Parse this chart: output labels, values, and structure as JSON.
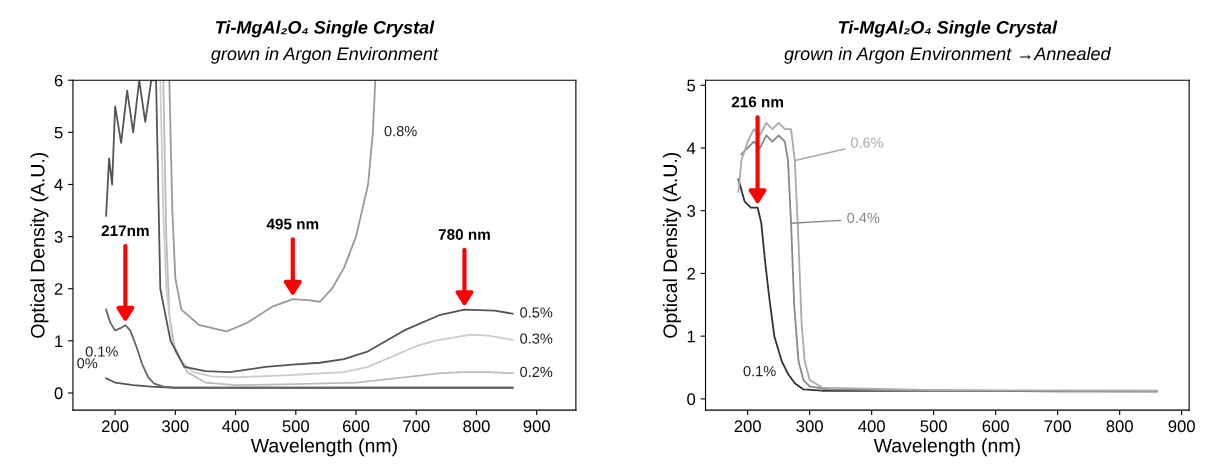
{
  "chart_data": [
    {
      "type": "line",
      "title": "Ti-MgAl₂O₄ Single Crystal",
      "subtitle": "grown in Argon Environment",
      "xlabel": "Wavelength (nm)",
      "ylabel": "Optical Density (A.U.)",
      "xlim": [
        130,
        965
      ],
      "ylim": [
        -0.33,
        6
      ],
      "xticks": [
        200,
        300,
        400,
        500,
        600,
        700,
        800,
        900
      ],
      "yticks": [
        0,
        1,
        2,
        3,
        4,
        5,
        6
      ],
      "series": [
        {
          "name": "0%",
          "color": "#555555",
          "x": [
            185,
            200,
            230,
            260,
            300,
            400,
            500,
            600,
            700,
            800,
            860
          ],
          "values": [
            0.28,
            0.2,
            0.15,
            0.12,
            0.1,
            0.1,
            0.1,
            0.1,
            0.1,
            0.1,
            0.1
          ]
        },
        {
          "name": "0.1%",
          "color": "#666666",
          "x": [
            185,
            192,
            200,
            210,
            217,
            225,
            235,
            245,
            255,
            265,
            280,
            300,
            400,
            600,
            860
          ],
          "values": [
            1.6,
            1.35,
            1.2,
            1.25,
            1.3,
            1.2,
            0.9,
            0.55,
            0.3,
            0.18,
            0.12,
            0.1,
            0.1,
            0.1,
            0.1
          ]
        },
        {
          "name": "0.2%",
          "color": "#bbbbbb",
          "x": [
            280,
            285,
            290,
            300,
            320,
            350,
            400,
            500,
            600,
            680,
            740,
            780,
            820,
            860
          ],
          "values": [
            6,
            3,
            1.5,
            0.8,
            0.4,
            0.2,
            0.15,
            0.17,
            0.2,
            0.3,
            0.38,
            0.4,
            0.4,
            0.38
          ]
        },
        {
          "name": "0.3%",
          "color": "#cccccc",
          "x": [
            275,
            280,
            285,
            295,
            310,
            330,
            360,
            400,
            500,
            580,
            620,
            660,
            700,
            730,
            790,
            820,
            860
          ],
          "values": [
            6,
            3.5,
            2,
            1,
            0.6,
            0.4,
            0.32,
            0.3,
            0.35,
            0.4,
            0.5,
            0.7,
            0.9,
            1.0,
            1.12,
            1.1,
            1.02
          ]
        },
        {
          "name": "0.5%",
          "color": "#555555",
          "x": [
            185,
            190,
            195,
            200,
            210,
            220,
            230,
            240,
            250,
            260,
            268,
            275,
            292,
            315,
            350,
            390,
            450,
            500,
            540,
            580,
            620,
            680,
            740,
            780,
            830,
            860
          ],
          "values": [
            3.4,
            4.5,
            4.0,
            5.5,
            4.8,
            5.8,
            5.0,
            6,
            5.2,
            6,
            6,
            2,
            1,
            0.5,
            0.42,
            0.4,
            0.5,
            0.55,
            0.58,
            0.65,
            0.8,
            1.2,
            1.5,
            1.6,
            1.58,
            1.52
          ]
        },
        {
          "name": "0.8%",
          "color": "#999999",
          "x": [
            290,
            295,
            300,
            310,
            340,
            385,
            420,
            460,
            495,
            520,
            540,
            560,
            580,
            600,
            620,
            628,
            632
          ],
          "values": [
            6,
            3.5,
            2.2,
            1.6,
            1.3,
            1.18,
            1.35,
            1.65,
            1.8,
            1.78,
            1.75,
            2,
            2.4,
            3,
            4,
            5,
            6
          ]
        }
      ],
      "annotations": [
        {
          "text": "217nm",
          "x": 217,
          "y": 1.3
        },
        {
          "text": "495 nm",
          "x": 495,
          "y": 1.8
        },
        {
          "text": "780 nm",
          "x": 780,
          "y": 1.6
        }
      ]
    },
    {
      "type": "line",
      "title": "Ti-MgAl₂O₄ Single Crystal",
      "subtitle": "grown in Argon Environment →Annealed",
      "xlabel": "Wavelength (nm)",
      "ylabel": "Optical Density (A.U.)",
      "xlim": [
        132,
        912
      ],
      "ylim": [
        -0.18,
        5.08
      ],
      "xticks": [
        200,
        300,
        400,
        500,
        600,
        700,
        800,
        900
      ],
      "yticks": [
        0,
        1,
        2,
        3,
        4,
        5
      ],
      "series": [
        {
          "name": "0.1%",
          "color": "#333333",
          "x": [
            185,
            195,
            205,
            216,
            222,
            228,
            235,
            243,
            255,
            265,
            276,
            290,
            320,
            500,
            700,
            860
          ],
          "values": [
            3.5,
            3.15,
            3.05,
            3.05,
            2.8,
            2.2,
            1.6,
            1.0,
            0.6,
            0.4,
            0.25,
            0.15,
            0.13,
            0.13,
            0.12,
            0.12
          ]
        },
        {
          "name": "0.4%",
          "color": "#888888",
          "x": [
            190,
            200,
            210,
            220,
            230,
            240,
            250,
            260,
            265,
            270,
            275,
            282,
            290,
            300,
            330,
            500,
            860
          ],
          "values": [
            3.9,
            4.0,
            4.1,
            4.0,
            4.2,
            4.1,
            4.2,
            4.1,
            3.8,
            2.8,
            1.5,
            0.6,
            0.3,
            0.2,
            0.15,
            0.13,
            0.12
          ]
        },
        {
          "name": "0.6%",
          "color": "#aaaaaa",
          "x": [
            185,
            190,
            200,
            210,
            220,
            230,
            240,
            250,
            260,
            270,
            276,
            282,
            287,
            292,
            300,
            320,
            500,
            860
          ],
          "values": [
            3.3,
            3.8,
            4.1,
            4.3,
            4.2,
            4.4,
            4.3,
            4.4,
            4.3,
            4.3,
            3.8,
            2.5,
            1.2,
            0.6,
            0.3,
            0.18,
            0.14,
            0.13
          ]
        }
      ],
      "annotations": [
        {
          "text": "216 nm",
          "x": 216,
          "y": 3.05
        }
      ]
    }
  ]
}
